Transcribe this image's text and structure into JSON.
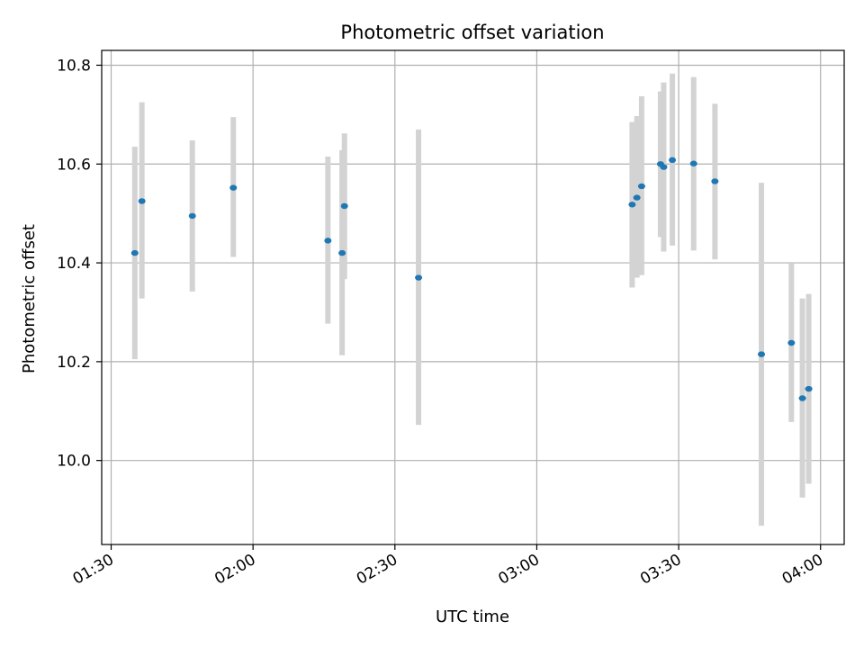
{
  "chart_data": {
    "type": "scatter",
    "title": "Photometric offset variation",
    "xlabel": "UTC time",
    "ylabel": "Photometric offset",
    "x_unit": "UTC time (HH:MM)",
    "xlim": [
      "01:28",
      "04:05"
    ],
    "ylim": [
      9.83,
      10.83
    ],
    "x_ticks": [
      "01:30",
      "02:00",
      "02:30",
      "03:00",
      "03:30",
      "04:00"
    ],
    "y_ticks": [
      "10.0",
      "10.2",
      "10.4",
      "10.6",
      "10.8"
    ],
    "grid": true,
    "point_color": "#1f77b4",
    "errorbar_color": "#d3d3d3",
    "series": [
      {
        "points": [
          {
            "x": "01:35:00",
            "y": 10.42,
            "ylow": 10.205,
            "yhigh": 10.635
          },
          {
            "x": "01:36:30",
            "y": 10.525,
            "ylow": 10.328,
            "yhigh": 10.725
          },
          {
            "x": "01:47:10",
            "y": 10.495,
            "ylow": 10.342,
            "yhigh": 10.648
          },
          {
            "x": "01:55:50",
            "y": 10.552,
            "ylow": 10.412,
            "yhigh": 10.695
          },
          {
            "x": "02:15:50",
            "y": 10.445,
            "ylow": 10.277,
            "yhigh": 10.615
          },
          {
            "x": "02:18:50",
            "y": 10.42,
            "ylow": 10.213,
            "yhigh": 10.628
          },
          {
            "x": "02:19:20",
            "y": 10.515,
            "ylow": 10.367,
            "yhigh": 10.662
          },
          {
            "x": "02:35:00",
            "y": 10.37,
            "ylow": 10.072,
            "yhigh": 10.67
          },
          {
            "x": "03:20:10",
            "y": 10.518,
            "ylow": 10.35,
            "yhigh": 10.685
          },
          {
            "x": "03:21:10",
            "y": 10.532,
            "ylow": 10.37,
            "yhigh": 10.697
          },
          {
            "x": "03:22:10",
            "y": 10.555,
            "ylow": 10.375,
            "yhigh": 10.737
          },
          {
            "x": "03:26:10",
            "y": 10.6,
            "ylow": 10.452,
            "yhigh": 10.747
          },
          {
            "x": "03:26:50",
            "y": 10.594,
            "ylow": 10.423,
            "yhigh": 10.765
          },
          {
            "x": "03:28:40",
            "y": 10.608,
            "ylow": 10.435,
            "yhigh": 10.783
          },
          {
            "x": "03:33:10",
            "y": 10.601,
            "ylow": 10.425,
            "yhigh": 10.776
          },
          {
            "x": "03:37:40",
            "y": 10.565,
            "ylow": 10.407,
            "yhigh": 10.722
          },
          {
            "x": "03:47:30",
            "y": 10.215,
            "ylow": 9.868,
            "yhigh": 10.562
          },
          {
            "x": "03:53:50",
            "y": 10.238,
            "ylow": 10.078,
            "yhigh": 10.4
          },
          {
            "x": "03:56:10",
            "y": 10.126,
            "ylow": 9.925,
            "yhigh": 10.328
          },
          {
            "x": "03:57:30",
            "y": 10.145,
            "ylow": 9.953,
            "yhigh": 10.337
          }
        ]
      }
    ]
  }
}
